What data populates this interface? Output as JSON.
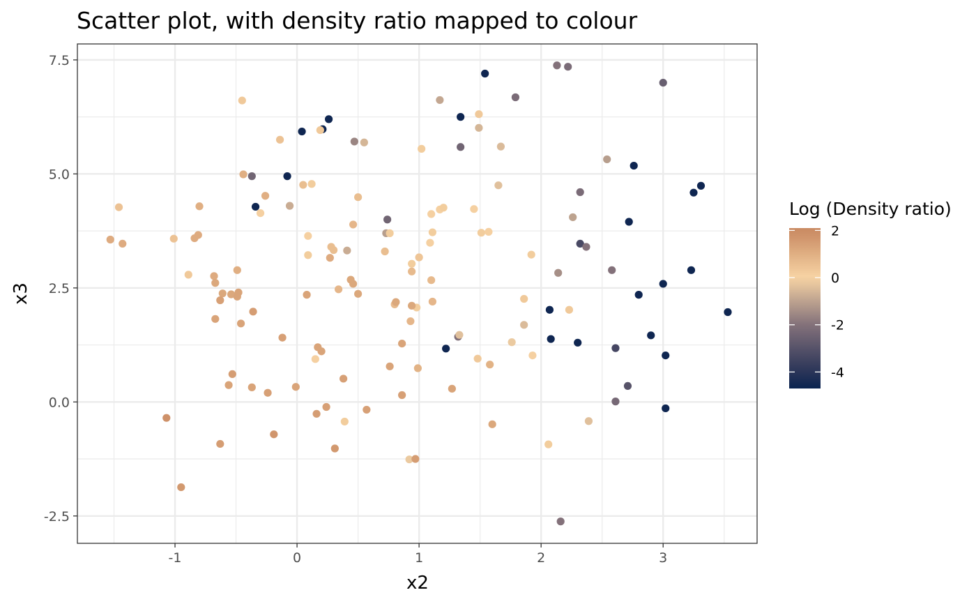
{
  "chart_data": {
    "type": "scatter",
    "title": "Scatter plot, with density ratio mapped to colour",
    "xlabel": "x2",
    "ylabel": "x3",
    "xlim": [
      -1.8,
      3.77
    ],
    "ylim": [
      -3.1,
      7.85
    ],
    "x_ticks": [
      -1,
      0,
      1,
      2,
      3
    ],
    "y_ticks": [
      -2.5,
      0.0,
      2.5,
      5.0,
      7.5
    ],
    "x_tick_labels": [
      "-1",
      "0",
      "1",
      "2",
      "3"
    ],
    "y_tick_labels": [
      "-2.5",
      "0.0",
      "2.5",
      "5.0",
      "7.5"
    ],
    "grid": true,
    "legend": {
      "title": "Log (Density ratio)",
      "placement": "right",
      "range": [
        -4.7,
        2.1
      ],
      "ticks": [
        2,
        0,
        -2,
        -4
      ],
      "tick_labels": [
        "2",
        "0",
        "-2",
        "-4"
      ],
      "colors": {
        "-4.7": "#0a2450",
        "-4": "#2a3458",
        "-2": "#83717a",
        "0": "#f7d4a4",
        "2": "#c98a62"
      }
    },
    "points": [
      {
        "x": 1.54,
        "y": 7.2,
        "c": -4.6
      },
      {
        "x": 0.26,
        "y": 6.2,
        "c": -4.6
      },
      {
        "x": 0.04,
        "y": 5.93,
        "c": -4.6
      },
      {
        "x": 0.21,
        "y": 5.98,
        "c": -4.6
      },
      {
        "x": 1.34,
        "y": 6.25,
        "c": -4.6
      },
      {
        "x": -0.08,
        "y": 4.95,
        "c": -4.6
      },
      {
        "x": -0.34,
        "y": 4.28,
        "c": -4.6
      },
      {
        "x": 2.76,
        "y": 5.18,
        "c": -4.6
      },
      {
        "x": 3.31,
        "y": 4.74,
        "c": -4.6
      },
      {
        "x": 3.25,
        "y": 4.59,
        "c": -4.6
      },
      {
        "x": 2.72,
        "y": 3.95,
        "c": -4.6
      },
      {
        "x": 3.23,
        "y": 2.89,
        "c": -4.6
      },
      {
        "x": 3.0,
        "y": 2.59,
        "c": -4.6
      },
      {
        "x": 2.8,
        "y": 2.35,
        "c": -4.6
      },
      {
        "x": 3.53,
        "y": 1.97,
        "c": -4.6
      },
      {
        "x": 2.07,
        "y": 2.02,
        "c": -4.6
      },
      {
        "x": 2.08,
        "y": 1.38,
        "c": -4.6
      },
      {
        "x": 2.3,
        "y": 1.3,
        "c": -4.6
      },
      {
        "x": 2.9,
        "y": 1.46,
        "c": -4.6
      },
      {
        "x": 3.02,
        "y": 1.02,
        "c": -4.6
      },
      {
        "x": 3.02,
        "y": -0.14,
        "c": -4.6
      },
      {
        "x": 1.22,
        "y": 1.17,
        "c": -4.6
      },
      {
        "x": 2.61,
        "y": 1.18,
        "c": -3.4
      },
      {
        "x": 2.32,
        "y": 3.47,
        "c": -3.3
      },
      {
        "x": 2.71,
        "y": 0.35,
        "c": -3.0
      },
      {
        "x": 3.0,
        "y": 7.0,
        "c": -2.6
      },
      {
        "x": 2.22,
        "y": 7.35,
        "c": -2.2
      },
      {
        "x": 2.13,
        "y": 7.38,
        "c": -2.0
      },
      {
        "x": 1.79,
        "y": 6.68,
        "c": -2.2
      },
      {
        "x": 1.34,
        "y": 5.59,
        "c": -2.4
      },
      {
        "x": 2.32,
        "y": 4.6,
        "c": -2.2
      },
      {
        "x": 0.74,
        "y": 4.0,
        "c": -2.4
      },
      {
        "x": -0.37,
        "y": 4.95,
        "c": -2.4
      },
      {
        "x": 2.37,
        "y": 3.4,
        "c": -2.0
      },
      {
        "x": 2.58,
        "y": 2.89,
        "c": -2.0
      },
      {
        "x": 2.61,
        "y": 0.01,
        "c": -2.3
      },
      {
        "x": 2.16,
        "y": -2.62,
        "c": -2.0
      },
      {
        "x": 1.32,
        "y": 1.43,
        "c": -2.1
      },
      {
        "x": 0.47,
        "y": 5.71,
        "c": -1.6
      },
      {
        "x": 2.14,
        "y": 2.83,
        "c": -1.4
      },
      {
        "x": 2.54,
        "y": 5.32,
        "c": -1.1
      },
      {
        "x": 2.26,
        "y": 4.05,
        "c": -1.0
      },
      {
        "x": 1.17,
        "y": 6.62,
        "c": -0.9
      },
      {
        "x": 0.73,
        "y": 3.7,
        "c": -1.1
      },
      {
        "x": 0.41,
        "y": 3.32,
        "c": -0.8
      },
      {
        "x": -0.06,
        "y": 4.3,
        "c": -0.8
      },
      {
        "x": 1.49,
        "y": 6.01,
        "c": -0.6
      },
      {
        "x": 1.67,
        "y": 5.6,
        "c": -0.5
      },
      {
        "x": 0.55,
        "y": 5.69,
        "c": -0.6
      },
      {
        "x": 1.65,
        "y": 4.75,
        "c": -0.4
      },
      {
        "x": 2.39,
        "y": -0.42,
        "c": -0.4
      },
      {
        "x": 1.86,
        "y": 1.69,
        "c": -0.5
      },
      {
        "x": 1.76,
        "y": 1.31,
        "c": -0.2
      },
      {
        "x": 1.33,
        "y": 1.47,
        "c": -0.4
      },
      {
        "x": 0.92,
        "y": -1.26,
        "c": -0.2
      },
      {
        "x": 2.23,
        "y": 2.02,
        "c": 0.3
      },
      {
        "x": 1.86,
        "y": 2.26,
        "c": 0.3
      },
      {
        "x": 1.49,
        "y": 6.31,
        "c": 0.3
      },
      {
        "x": -0.45,
        "y": 6.61,
        "c": 0.3
      },
      {
        "x": 0.19,
        "y": 5.96,
        "c": 0.3
      },
      {
        "x": 1.02,
        "y": 5.55,
        "c": 0.2
      },
      {
        "x": 0.12,
        "y": 4.78,
        "c": 0.2
      },
      {
        "x": 0.76,
        "y": 3.7,
        "c": 0.2
      },
      {
        "x": 1.45,
        "y": 4.23,
        "c": 0.1
      },
      {
        "x": 1.1,
        "y": 4.12,
        "c": 0.1
      },
      {
        "x": 1.17,
        "y": 4.22,
        "c": 0.1
      },
      {
        "x": 1.2,
        "y": 4.26,
        "c": 0.2
      },
      {
        "x": 1.11,
        "y": 3.72,
        "c": 0.2
      },
      {
        "x": 1.51,
        "y": 3.71,
        "c": 0.2
      },
      {
        "x": 1.57,
        "y": 3.73,
        "c": 0.1
      },
      {
        "x": 1.09,
        "y": 3.49,
        "c": 0.1
      },
      {
        "x": 0.09,
        "y": 3.64,
        "c": 0.1
      },
      {
        "x": 0.09,
        "y": 3.22,
        "c": 0.2
      },
      {
        "x": -0.3,
        "y": 4.14,
        "c": 0.1
      },
      {
        "x": -0.89,
        "y": 2.79,
        "c": 0.3
      },
      {
        "x": 0.94,
        "y": 3.03,
        "c": 0.2
      },
      {
        "x": 1.92,
        "y": 3.23,
        "c": 0.2
      },
      {
        "x": 0.15,
        "y": 0.94,
        "c": 0.1
      },
      {
        "x": 1.48,
        "y": 0.95,
        "c": 0.3
      },
      {
        "x": 1.93,
        "y": 1.02,
        "c": 0.1
      },
      {
        "x": 0.39,
        "y": -0.43,
        "c": 0.2
      },
      {
        "x": 2.06,
        "y": -0.93,
        "c": 0.2
      },
      {
        "x": 0.98,
        "y": 2.07,
        "c": 0.2
      },
      {
        "x": 1.0,
        "y": 3.17,
        "c": 0.4
      },
      {
        "x": -0.14,
        "y": 5.75,
        "c": 0.5
      },
      {
        "x": 0.05,
        "y": 4.76,
        "c": 0.6
      },
      {
        "x": 0.5,
        "y": 4.49,
        "c": 0.6
      },
      {
        "x": -1.46,
        "y": 4.27,
        "c": 0.5
      },
      {
        "x": -1.01,
        "y": 3.58,
        "c": 0.5
      },
      {
        "x": 0.28,
        "y": 3.4,
        "c": 0.6
      },
      {
        "x": 0.3,
        "y": 3.33,
        "c": 0.6
      },
      {
        "x": 0.72,
        "y": 3.3,
        "c": 0.6
      },
      {
        "x": 0.46,
        "y": 3.89,
        "c": 0.8
      },
      {
        "x": 0.94,
        "y": 2.86,
        "c": 0.7
      },
      {
        "x": 1.1,
        "y": 2.67,
        "c": 0.7
      },
      {
        "x": 0.34,
        "y": 2.47,
        "c": 0.8
      },
      {
        "x": 0.8,
        "y": 2.14,
        "c": 0.7
      },
      {
        "x": 1.11,
        "y": 2.2,
        "c": 0.8
      },
      {
        "x": 0.93,
        "y": 1.77,
        "c": 0.8
      },
      {
        "x": 1.58,
        "y": 0.82,
        "c": 0.9
      },
      {
        "x": 0.99,
        "y": 0.74,
        "c": 0.9
      },
      {
        "x": -0.44,
        "y": 4.99,
        "c": 1.0
      },
      {
        "x": -0.26,
        "y": 4.52,
        "c": 1.0
      },
      {
        "x": -0.8,
        "y": 4.29,
        "c": 1.0
      },
      {
        "x": -0.81,
        "y": 3.66,
        "c": 1.1
      },
      {
        "x": -0.84,
        "y": 3.59,
        "c": 1.1
      },
      {
        "x": -1.53,
        "y": 3.56,
        "c": 1.1
      },
      {
        "x": -1.43,
        "y": 3.47,
        "c": 1.1
      },
      {
        "x": 0.27,
        "y": 3.16,
        "c": 1.1
      },
      {
        "x": -0.49,
        "y": 2.89,
        "c": 1.0
      },
      {
        "x": -0.68,
        "y": 2.76,
        "c": 1.1
      },
      {
        "x": -0.67,
        "y": 2.61,
        "c": 1.2
      },
      {
        "x": 0.44,
        "y": 2.68,
        "c": 1.2
      },
      {
        "x": 0.46,
        "y": 2.59,
        "c": 1.2
      },
      {
        "x": 0.5,
        "y": 2.37,
        "c": 1.2
      },
      {
        "x": -0.61,
        "y": 2.38,
        "c": 1.2
      },
      {
        "x": -0.54,
        "y": 2.36,
        "c": 1.2
      },
      {
        "x": -0.48,
        "y": 2.4,
        "c": 1.3
      },
      {
        "x": -0.49,
        "y": 2.31,
        "c": 1.3
      },
      {
        "x": 0.08,
        "y": 2.35,
        "c": 1.3
      },
      {
        "x": 0.81,
        "y": 2.19,
        "c": 1.2
      },
      {
        "x": 0.94,
        "y": 2.11,
        "c": 1.2
      },
      {
        "x": -0.63,
        "y": 2.23,
        "c": 1.4
      },
      {
        "x": -0.36,
        "y": 1.98,
        "c": 1.5
      },
      {
        "x": -0.67,
        "y": 1.82,
        "c": 1.3
      },
      {
        "x": -0.46,
        "y": 1.72,
        "c": 1.3
      },
      {
        "x": -0.12,
        "y": 1.41,
        "c": 1.4
      },
      {
        "x": 0.17,
        "y": 1.2,
        "c": 1.3
      },
      {
        "x": 0.2,
        "y": 1.11,
        "c": 1.3
      },
      {
        "x": 0.86,
        "y": 1.28,
        "c": 1.3
      },
      {
        "x": 0.76,
        "y": 0.78,
        "c": 1.3
      },
      {
        "x": -0.53,
        "y": 0.61,
        "c": 1.5
      },
      {
        "x": -0.56,
        "y": 0.37,
        "c": 1.3
      },
      {
        "x": -0.37,
        "y": 0.32,
        "c": 1.3
      },
      {
        "x": -0.01,
        "y": 0.33,
        "c": 1.3
      },
      {
        "x": -0.24,
        "y": 0.2,
        "c": 1.4
      },
      {
        "x": 0.38,
        "y": 0.51,
        "c": 1.4
      },
      {
        "x": 1.27,
        "y": 0.29,
        "c": 1.3
      },
      {
        "x": 0.86,
        "y": 0.15,
        "c": 1.4
      },
      {
        "x": 0.24,
        "y": -0.11,
        "c": 1.4
      },
      {
        "x": 0.16,
        "y": -0.26,
        "c": 1.5
      },
      {
        "x": 0.57,
        "y": -0.17,
        "c": 1.4
      },
      {
        "x": 1.6,
        "y": -0.49,
        "c": 1.2
      },
      {
        "x": -1.07,
        "y": -0.35,
        "c": 1.8
      },
      {
        "x": -0.63,
        "y": -0.92,
        "c": 1.5
      },
      {
        "x": -0.19,
        "y": -0.71,
        "c": 1.7
      },
      {
        "x": 0.31,
        "y": -1.02,
        "c": 1.6
      },
      {
        "x": 0.97,
        "y": -1.25,
        "c": 1.5
      },
      {
        "x": -0.95,
        "y": -1.87,
        "c": 1.6
      }
    ]
  }
}
